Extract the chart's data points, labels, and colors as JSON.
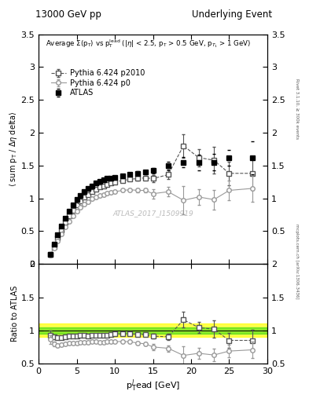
{
  "title_left": "13000 GeV pp",
  "title_right": "Underlying Event",
  "annotation": "ATLAS_2017_I1509919",
  "right_label_top": "Rivet 3.1.10, ≥ 300k events",
  "right_label_bottom": "mcplots.cern.ch [arXiv:1306.3436]",
  "ylim_main": [
    0,
    3.5
  ],
  "ylim_ratio": [
    0.5,
    2.0
  ],
  "xlim": [
    0,
    30
  ],
  "yticks_main": [
    0,
    0.5,
    1.0,
    1.5,
    2.0,
    2.5,
    3.0,
    3.5
  ],
  "yticks_ratio": [
    0.5,
    1.0,
    1.5,
    2.0
  ],
  "xticks": [
    0,
    5,
    10,
    15,
    20,
    25,
    30
  ],
  "atlas_x": [
    1.5,
    2.0,
    2.5,
    3.0,
    3.5,
    4.0,
    4.5,
    5.0,
    5.5,
    6.0,
    6.5,
    7.0,
    7.5,
    8.0,
    8.5,
    9.0,
    9.5,
    10.0,
    11.0,
    12.0,
    13.0,
    14.0,
    15.0,
    17.0,
    19.0,
    21.0,
    23.0,
    25.0,
    28.0
  ],
  "atlas_y": [
    0.15,
    0.3,
    0.45,
    0.58,
    0.7,
    0.8,
    0.9,
    0.98,
    1.04,
    1.1,
    1.15,
    1.19,
    1.23,
    1.26,
    1.28,
    1.3,
    1.31,
    1.32,
    1.34,
    1.36,
    1.38,
    1.4,
    1.42,
    1.5,
    1.55,
    1.55,
    1.55,
    1.62,
    1.62
  ],
  "atlas_yerr": [
    0.01,
    0.01,
    0.01,
    0.01,
    0.01,
    0.01,
    0.01,
    0.01,
    0.01,
    0.01,
    0.01,
    0.01,
    0.01,
    0.01,
    0.01,
    0.01,
    0.01,
    0.01,
    0.02,
    0.02,
    0.03,
    0.03,
    0.04,
    0.06,
    0.08,
    0.12,
    0.13,
    0.12,
    0.25
  ],
  "p0_x": [
    1.5,
    2.0,
    2.5,
    3.0,
    3.5,
    4.0,
    4.5,
    5.0,
    5.5,
    6.0,
    6.5,
    7.0,
    7.5,
    8.0,
    8.5,
    9.0,
    9.5,
    10.0,
    11.0,
    12.0,
    13.0,
    14.0,
    15.0,
    17.0,
    19.0,
    21.0,
    23.0,
    25.0,
    28.0
  ],
  "p0_y": [
    0.13,
    0.24,
    0.35,
    0.46,
    0.56,
    0.65,
    0.73,
    0.8,
    0.86,
    0.91,
    0.95,
    0.99,
    1.02,
    1.04,
    1.06,
    1.08,
    1.09,
    1.1,
    1.12,
    1.13,
    1.12,
    1.12,
    1.07,
    1.1,
    0.97,
    1.02,
    0.98,
    1.12,
    1.15
  ],
  "p0_yerr": [
    0.01,
    0.01,
    0.01,
    0.01,
    0.01,
    0.01,
    0.01,
    0.01,
    0.01,
    0.01,
    0.01,
    0.01,
    0.01,
    0.01,
    0.01,
    0.01,
    0.01,
    0.01,
    0.02,
    0.02,
    0.03,
    0.03,
    0.07,
    0.07,
    0.22,
    0.12,
    0.15,
    0.15,
    0.2
  ],
  "p2010_x": [
    1.5,
    2.0,
    2.5,
    3.0,
    3.5,
    4.0,
    4.5,
    5.0,
    5.5,
    6.0,
    6.5,
    7.0,
    7.5,
    8.0,
    8.5,
    9.0,
    9.5,
    10.0,
    11.0,
    12.0,
    13.0,
    14.0,
    15.0,
    17.0,
    19.0,
    21.0,
    23.0,
    25.0,
    28.0
  ],
  "p2010_y": [
    0.14,
    0.27,
    0.4,
    0.52,
    0.63,
    0.73,
    0.82,
    0.9,
    0.96,
    1.02,
    1.06,
    1.1,
    1.14,
    1.17,
    1.19,
    1.21,
    1.23,
    1.25,
    1.27,
    1.29,
    1.3,
    1.31,
    1.3,
    1.36,
    1.8,
    1.62,
    1.58,
    1.38,
    1.38
  ],
  "p2010_yerr": [
    0.01,
    0.01,
    0.01,
    0.01,
    0.01,
    0.01,
    0.01,
    0.01,
    0.01,
    0.01,
    0.01,
    0.01,
    0.01,
    0.01,
    0.01,
    0.01,
    0.01,
    0.01,
    0.02,
    0.02,
    0.03,
    0.03,
    0.05,
    0.07,
    0.18,
    0.13,
    0.2,
    0.18,
    0.25
  ]
}
